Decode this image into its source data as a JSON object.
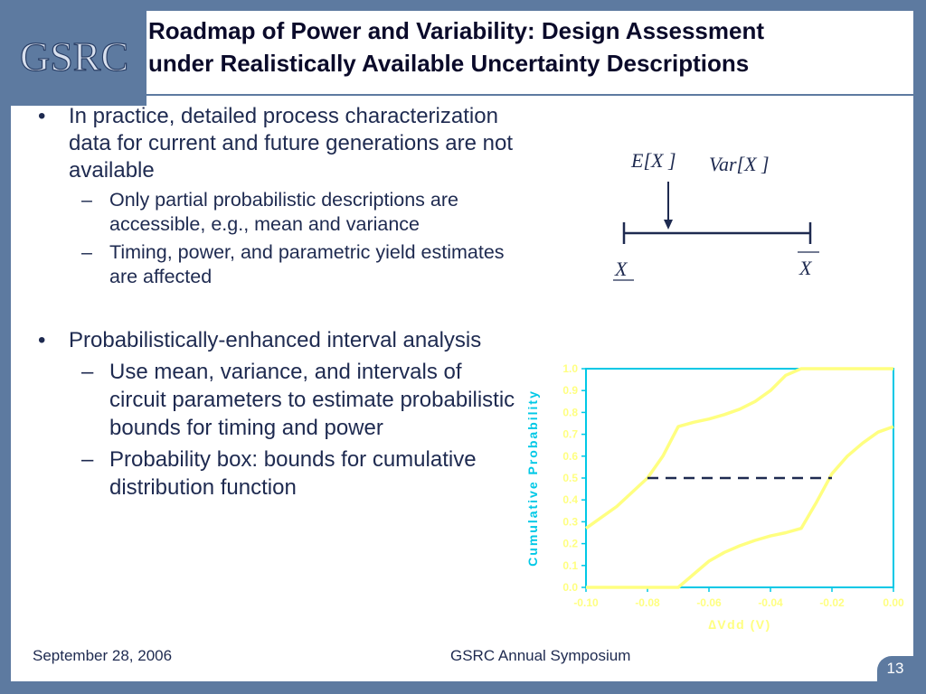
{
  "logo": {
    "text": "GSRC"
  },
  "title": {
    "line1": "Roadmap of Power and Variability: Design Assessment",
    "line2": "under Realistically Available Uncertainty Descriptions"
  },
  "bullets": [
    {
      "text": "In practice, detailed process characterization data for current and future generations are not available",
      "sub": [
        "Only partial probabilistic descriptions are accessible, e.g., mean and variance",
        "Timing, power, and parametric yield estimates are affected"
      ]
    },
    {
      "text": "Probabilistically-enhanced interval analysis",
      "sub": [
        "Use mean, variance, and intervals of circuit parameters to estimate probabilistic bounds for timing and power",
        "Probability box: bounds for cumulative distribution function"
      ]
    }
  ],
  "bullet_glyph": "•",
  "dash_glyph": "–",
  "interval_diagram": {
    "mean_label": "E[X ]",
    "var_label": "Var[X ]",
    "lower_label": "X",
    "upper_label": "X"
  },
  "footer": {
    "date": "September 28, 2006",
    "center": "GSRC Annual Symposium",
    "page": "13"
  },
  "colors": {
    "frame": "#5d7aa0",
    "text": "#1e2a50",
    "curve": "#ffff80",
    "axis": "#00c8e6"
  },
  "chart_data": {
    "type": "line",
    "title": "",
    "xlabel": "∆Vdd (V)",
    "ylabel": "Cumulative Probability",
    "xlim": [
      -0.1,
      0.0
    ],
    "ylim": [
      0.0,
      1.0
    ],
    "x_ticks": [
      "-0.10",
      "-0.08",
      "-0.06",
      "-0.04",
      "-0.02",
      "0.00"
    ],
    "y_ticks": [
      "0.0",
      "0.1",
      "0.2",
      "0.3",
      "0.4",
      "0.5",
      "0.6",
      "0.7",
      "0.8",
      "0.9",
      "1.0"
    ],
    "grid": false,
    "series": [
      {
        "role": "upper bound",
        "x": [
          -0.1,
          -0.09,
          -0.08,
          -0.075,
          -0.07,
          -0.065,
          -0.06,
          -0.055,
          -0.05,
          -0.045,
          -0.04,
          -0.035,
          -0.03,
          0.0
        ],
        "y": [
          0.27,
          0.37,
          0.5,
          0.6,
          0.735,
          0.755,
          0.77,
          0.79,
          0.815,
          0.85,
          0.9,
          0.97,
          1.0,
          1.0
        ]
      },
      {
        "role": "lower bound",
        "x": [
          -0.1,
          -0.07,
          -0.065,
          -0.06,
          -0.055,
          -0.05,
          -0.045,
          -0.04,
          -0.035,
          -0.03,
          -0.025,
          -0.02,
          -0.015,
          -0.01,
          -0.005,
          0.0
        ],
        "y": [
          0.0,
          0.0,
          0.06,
          0.12,
          0.16,
          0.19,
          0.215,
          0.235,
          0.25,
          0.27,
          0.39,
          0.52,
          0.6,
          0.66,
          0.71,
          0.735
        ]
      }
    ],
    "annotations": [
      {
        "type": "dashed-hline",
        "y": 0.5,
        "x_from": -0.08,
        "x_to": -0.02
      }
    ]
  }
}
